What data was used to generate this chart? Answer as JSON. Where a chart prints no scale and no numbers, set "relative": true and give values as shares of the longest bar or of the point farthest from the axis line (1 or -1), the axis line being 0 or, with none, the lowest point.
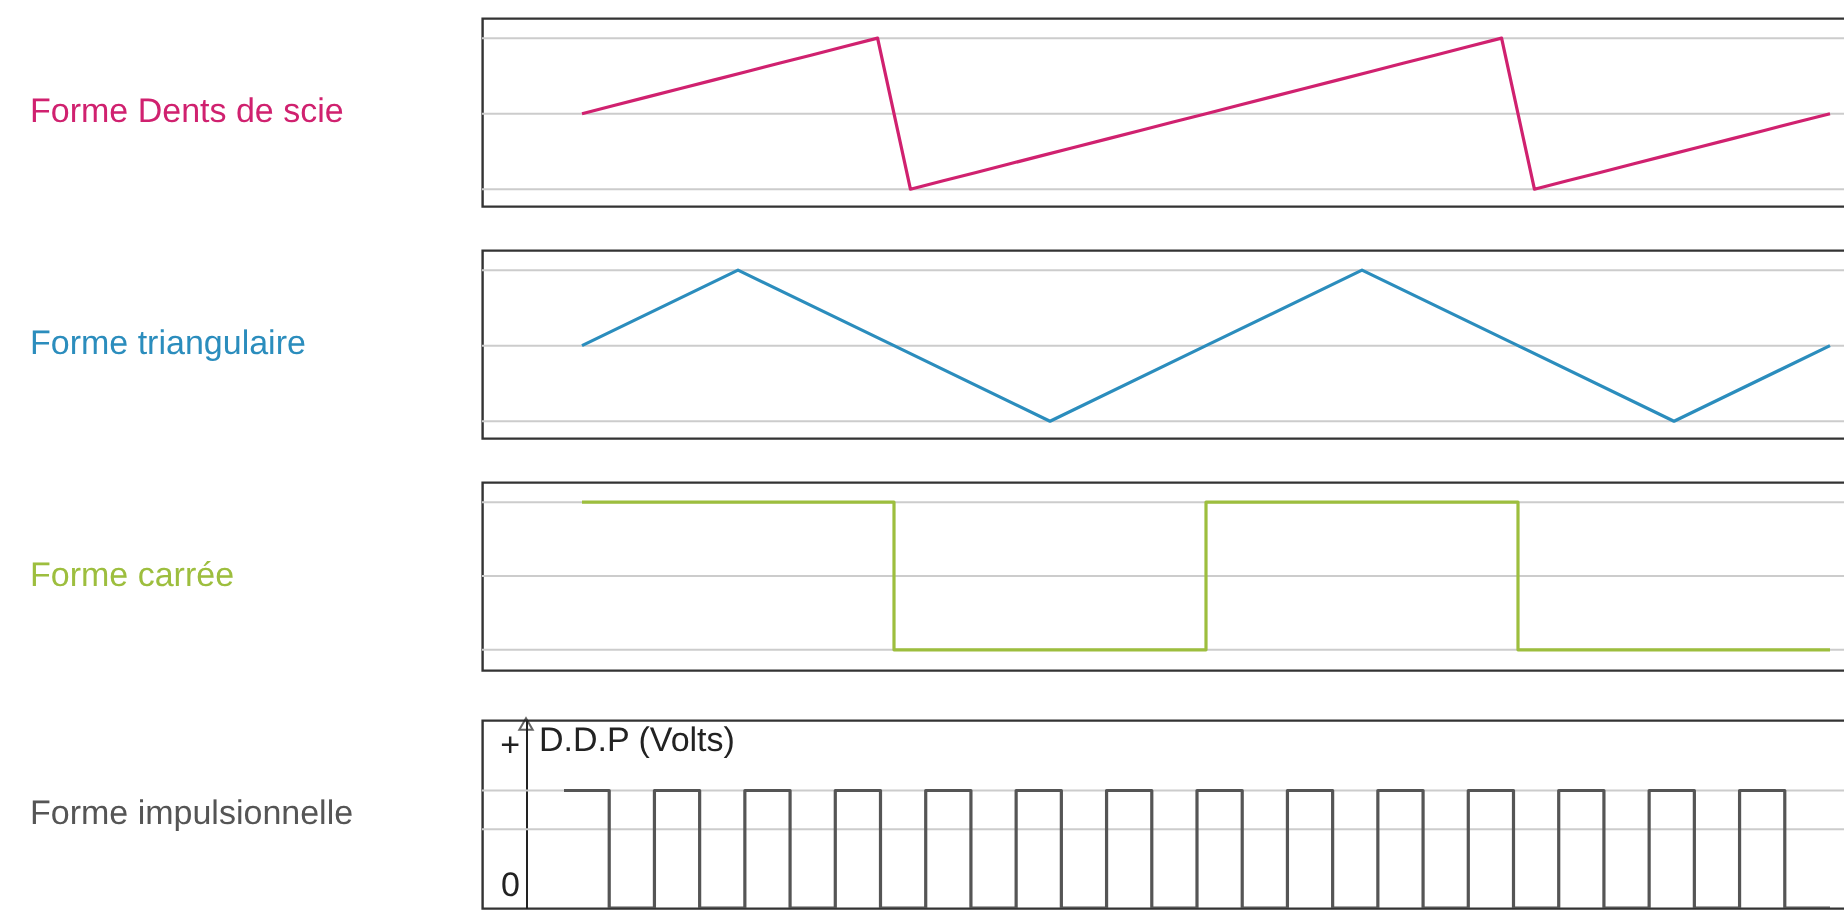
{
  "chart_data": [
    {
      "type": "line",
      "relative": true,
      "categories": [
        null,
        null,
        null,
        null,
        null,
        null,
        null,
        null,
        null,
        null,
        null,
        null,
        null,
        null,
        null,
        null,
        null,
        null,
        null,
        null,
        null,
        null,
        null,
        null,
        null,
        null,
        null,
        null,
        null,
        null,
        null,
        null,
        null,
        null,
        null,
        null,
        null,
        null,
        null
      ],
      "ref_lines": [
        {
          "axis": "y",
          "value": 0.1,
          "color": "#cccccc"
        },
        {
          "axis": "y",
          "value": 0.55,
          "color": "#cccccc"
        },
        {
          "axis": "y",
          "value": 1,
          "color": "#cccccc"
        }
      ],
      "series": [
        {
          "name": "Forme Dents de scie",
          "color": "#d0216f",
          "values": [
            0.55,
            0.6,
            0.65,
            0.7,
            0.75,
            0.8,
            0.85,
            0.9,
            0.95,
            1,
            0.1,
            0.15,
            0.2,
            0.25,
            0.3,
            0.35,
            0.4,
            0.45,
            0.5,
            0.55,
            0.6,
            0.65,
            0.7,
            0.75,
            0.8,
            0.85,
            0.9,
            0.95,
            1,
            0.1,
            0.15,
            0.2,
            0.25,
            0.3,
            0.35,
            0.4,
            0.45,
            0.5,
            0.55
          ]
        }
      ]
    },
    {
      "type": "line",
      "relative": true,
      "categories": [
        null,
        null,
        null,
        null,
        null,
        null,
        null,
        null,
        null
      ],
      "ref_lines": [
        {
          "axis": "y",
          "value": 0.1,
          "color": "#cccccc"
        },
        {
          "axis": "y",
          "value": 0.55,
          "color": "#cccccc"
        },
        {
          "axis": "y",
          "value": 1,
          "color": "#cccccc"
        }
      ],
      "series": [
        {
          "name": "Forme  triangulaire",
          "color": "#2b8dbd",
          "values": [
            0.55,
            1,
            0.55,
            0.1,
            0.55,
            1,
            0.55,
            0.1,
            0.55
          ]
        }
      ]
    },
    {
      "type": "step",
      "relative": true,
      "categories": [
        null,
        null,
        null,
        null,
        null,
        null,
        null,
        null,
        null
      ],
      "ref_lines": [
        {
          "axis": "y",
          "value": 0.12,
          "color": "#cccccc"
        },
        {
          "axis": "y",
          "value": 0.56,
          "color": "#cccccc"
        },
        {
          "axis": "y",
          "value": 1,
          "color": "#cccccc"
        }
      ],
      "series": [
        {
          "name": "Forme carrée",
          "color": "#9dbe3e",
          "values": [
            1,
            1,
            0.12,
            0.12,
            1,
            1,
            0.12,
            0.12,
            0.12
          ]
        }
      ]
    },
    {
      "type": "step",
      "relative": true,
      "ylabel": "D.D.P (Volts)",
      "annotations": [
        "+",
        "0"
      ],
      "categories": [
        null,
        null,
        null,
        null,
        null,
        null,
        null,
        null,
        null,
        null,
        null,
        null,
        null,
        null,
        null,
        null,
        null,
        null,
        null,
        null,
        null,
        null,
        null,
        null,
        null,
        null,
        null,
        null,
        null
      ],
      "ref_lines": [
        {
          "axis": "y",
          "value": 0.67,
          "color": "#cccccc"
        },
        {
          "axis": "y",
          "value": 1,
          "color": "#cccccc"
        }
      ],
      "series": [
        {
          "name": "Forme impulsionnelle",
          "color": "#555555",
          "values": [
            1,
            0,
            1,
            0,
            1,
            0,
            1,
            0,
            1,
            0,
            1,
            0,
            1,
            0,
            1,
            0,
            1,
            0,
            1,
            0,
            1,
            0,
            1,
            0,
            1,
            0,
            1,
            0,
            0
          ]
        }
      ]
    }
  ]
}
